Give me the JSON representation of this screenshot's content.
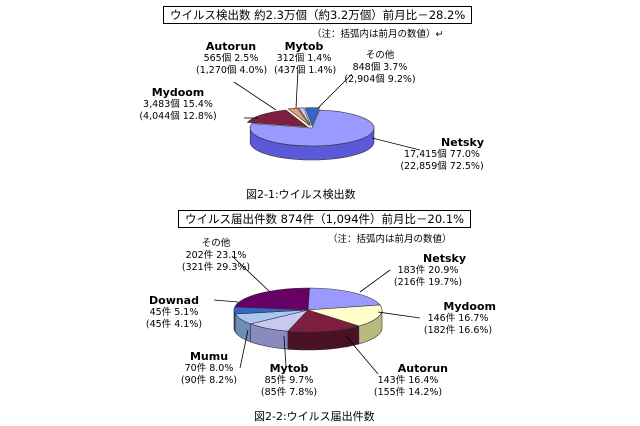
{
  "chart_data": [
    {
      "type": "pie",
      "title": "ウイルス検出数 約2.3万個（約3.2万個）前月比－28.2%",
      "note": "（注：括弧内は前月の数値）↵",
      "caption": "図2-1:ウイルス検出数",
      "slices": [
        {
          "name": "Netsky",
          "line1": "17,415個 77.0%",
          "line2": "(22,859個 72.5%)",
          "percent": 77.0,
          "color": "#9999ff",
          "side": "#5a5ad8"
        },
        {
          "name": "Mydoom",
          "line1": "3,483個 15.4%",
          "line2": "(4,044個 12.8%)",
          "percent": 15.4,
          "color": "#7f1f3f",
          "side": "#4a1024"
        },
        {
          "name": "Autorun",
          "line1": "565個 2.5%",
          "line2": "(1,270個 4.0%)",
          "percent": 2.5,
          "color": "#e8a070",
          "side": "#a66c44"
        },
        {
          "name": "Mytob",
          "line1": "312個 1.4%",
          "line2": "(437個 1.4%)",
          "percent": 1.4,
          "color": "#c8c8f0",
          "side": "#8a8ac0"
        },
        {
          "name": "その他",
          "line1": "848個 3.7%",
          "line2": "(2,904個 9.2%)",
          "percent": 3.7,
          "color": "#3366cc",
          "side": "#1f3f8c"
        }
      ]
    },
    {
      "type": "pie",
      "title": "ウイルス届出件数 874件（1,094件）前月比－20.1%",
      "note": "（注：括弧内は前月の数値）",
      "caption": "図2-2:ウイルス届出件数",
      "slices": [
        {
          "name": "Netsky",
          "line1": "183件 20.9%",
          "line2": "(216件 19.7%)",
          "percent": 20.9,
          "color": "#9999ff",
          "side": "#5a5ad8"
        },
        {
          "name": "Mydoom",
          "line1": "146件 16.7%",
          "line2": "(182件 16.6%)",
          "percent": 16.7,
          "color": "#ffffcc",
          "side": "#b9b980"
        },
        {
          "name": "Autorun",
          "line1": "143件 16.4%",
          "line2": "(155件 14.2%)",
          "percent": 16.4,
          "color": "#7f1f3f",
          "side": "#4a1024"
        },
        {
          "name": "Mytob",
          "line1": "85件 9.7%",
          "line2": "(85件 7.8%)",
          "percent": 9.7,
          "color": "#c8c8f0",
          "side": "#8a8ac0"
        },
        {
          "name": "Mumu",
          "line1": "70件 8.0%",
          "line2": "(90件 8.2%)",
          "percent": 8.0,
          "color": "#aac8ee",
          "side": "#6e8cb4"
        },
        {
          "name": "Downad",
          "line1": "45件 5.1%",
          "line2": "(45件 4.1%)",
          "percent": 5.1,
          "color": "#3366cc",
          "side": "#1f3f8c"
        },
        {
          "name": "その他",
          "line1": "202件 23.1%",
          "line2": "(321件 29.3%)",
          "percent": 23.1,
          "color": "#660066",
          "side": "#3a003a"
        }
      ]
    }
  ]
}
